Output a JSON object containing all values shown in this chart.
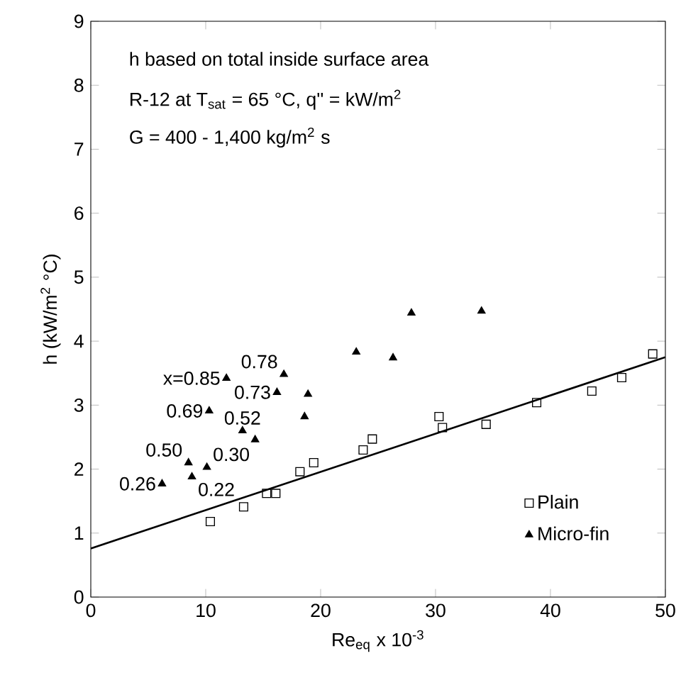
{
  "chart_data": {
    "type": "scatter",
    "xlabel": "Re$_{eq}$ x 10$^{-3}$",
    "ylabel": "h (kW/m$^{2}$ °C)",
    "xlim": [
      0,
      50
    ],
    "ylim": [
      0,
      9
    ],
    "xticks": [
      0,
      10,
      20,
      30,
      40,
      50
    ],
    "yticks": [
      0,
      1,
      2,
      3,
      4,
      5,
      6,
      7,
      8,
      9
    ],
    "grid": false,
    "legend": "bottom right",
    "series": [
      {
        "name": "Plain",
        "marker": "square",
        "color": "#000000",
        "x": [
          10.4,
          13.3,
          15.3,
          16.1,
          18.2,
          19.4,
          23.7,
          24.5,
          30.3,
          30.6,
          34.4,
          38.8,
          43.6,
          46.2,
          48.9
        ],
        "values": [
          1.18,
          1.41,
          1.62,
          1.62,
          1.96,
          2.1,
          2.3,
          2.47,
          2.82,
          2.65,
          2.7,
          3.04,
          3.22,
          3.43,
          3.8
        ]
      },
      {
        "name": "Micro-fin",
        "marker": "triangle",
        "color": "#000000",
        "x": [
          6.2,
          8.5,
          8.8,
          10.1,
          10.3,
          11.8,
          13.2,
          14.3,
          16.2,
          16.8,
          18.9,
          18.6,
          23.1,
          26.3,
          27.9,
          34.0
        ],
        "values": [
          1.77,
          2.1,
          1.88,
          2.03,
          2.91,
          3.42,
          2.6,
          2.46,
          3.2,
          3.48,
          3.17,
          2.82,
          3.83,
          3.74,
          4.44,
          4.47
        ]
      },
      {
        "type": "line",
        "line_style": "solid",
        "color": "#000000",
        "x": [
          0,
          50
        ],
        "values": [
          0.76,
          3.75
        ]
      }
    ],
    "annotations": [
      "h based on total inside surface area",
      "R-12 at T$_{sat}$ = 65 °C, q'' = kW/m$^{2}$",
      "G = 400 - 1,400 kg/m$^{2}$ s",
      {
        "text": "0.26",
        "x": 6.2,
        "y": 1.77
      },
      {
        "text": "0.50",
        "x": 8.5,
        "y": 2.1
      },
      {
        "text": "0.22",
        "x": 8.8,
        "y": 1.88
      },
      {
        "text": "0.30",
        "x": 10.1,
        "y": 2.03
      },
      {
        "text": "0.69",
        "x": 10.3,
        "y": 2.91
      },
      {
        "text": "x=0.85",
        "x": 11.8,
        "y": 3.42
      },
      {
        "text": "0.52",
        "x": 13.2,
        "y": 2.6
      },
      {
        "text": "0.73",
        "x": 16.2,
        "y": 3.2
      },
      {
        "text": "0.78",
        "x": 16.8,
        "y": 3.48
      }
    ]
  }
}
